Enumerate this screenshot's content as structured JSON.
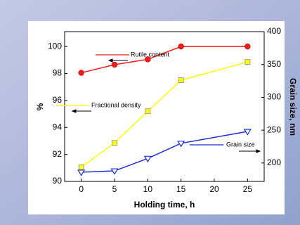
{
  "chart_data": {
    "type": "line",
    "x": [
      0,
      5,
      10,
      15,
      25
    ],
    "xlim": [
      -2.5,
      27.5
    ],
    "xticks": [
      0,
      5,
      10,
      15,
      20,
      25
    ],
    "ylim": [
      90,
      101.1
    ],
    "yticks": [
      90,
      92,
      94,
      96,
      98,
      100
    ],
    "y2lim": [
      172,
      400
    ],
    "y2ticks": [
      200,
      250,
      300,
      350,
      400
    ],
    "xlabel": "Holding time, h",
    "ylabel": "%",
    "y2label": "Grain size, nm",
    "series": [
      {
        "name": "Rutile content",
        "color": "#ee1c1c",
        "marker": "circle",
        "values": [
          98.05,
          98.65,
          99.05,
          100,
          100
        ]
      },
      {
        "name": "Fractional density",
        "color": "#ffff00",
        "marker": "square",
        "values": [
          91.05,
          92.85,
          95.2,
          97.5,
          98.85
        ]
      },
      {
        "name": "Grain size",
        "color": "#1a2fd6",
        "marker": "triangle",
        "axis": "y2",
        "values": [
          186,
          188,
          207,
          230,
          248
        ]
      }
    ]
  }
}
